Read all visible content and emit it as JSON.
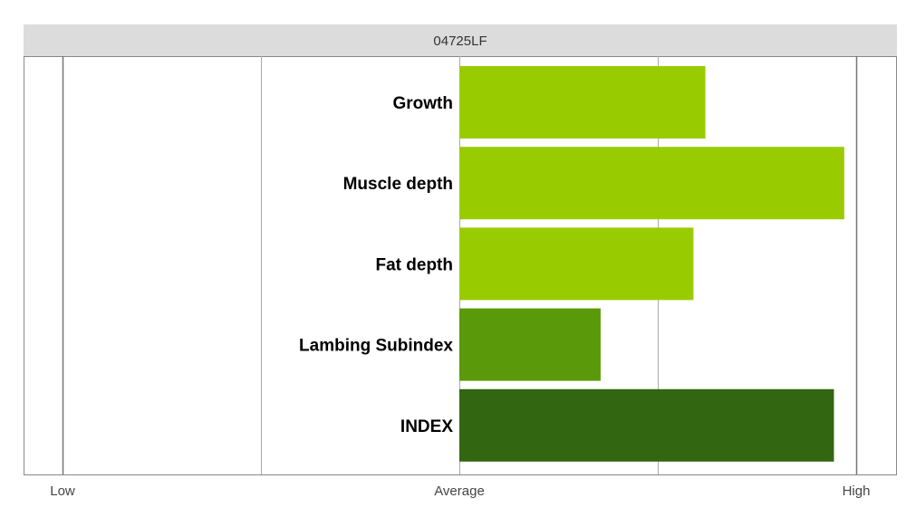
{
  "chart_data": {
    "type": "bar",
    "orientation": "horizontal",
    "title": "04725LF",
    "categories": [
      "Growth",
      "Muscle depth",
      "Fat depth",
      "Lambing Subindex",
      "INDEX"
    ],
    "values": [
      0.31,
      0.485,
      0.295,
      0.178,
      0.472
    ],
    "colors": [
      "#99cc00",
      "#99cc00",
      "#99cc00",
      "#5a9a0a",
      "#336611"
    ],
    "xlim": [
      -0.5,
      0.5
    ],
    "x_ticks": [
      -0.5,
      -0.25,
      0,
      0.25,
      0.5
    ],
    "x_tick_labels": [
      {
        "value": -0.5,
        "label": "Low"
      },
      {
        "value": 0,
        "label": "Average"
      },
      {
        "value": 0.5,
        "label": "High"
      }
    ],
    "grid": true,
    "legend": "none"
  },
  "colors": {
    "title_bar": "#dcdcdc",
    "border": "#888888",
    "grid": "#aaaaaa"
  }
}
